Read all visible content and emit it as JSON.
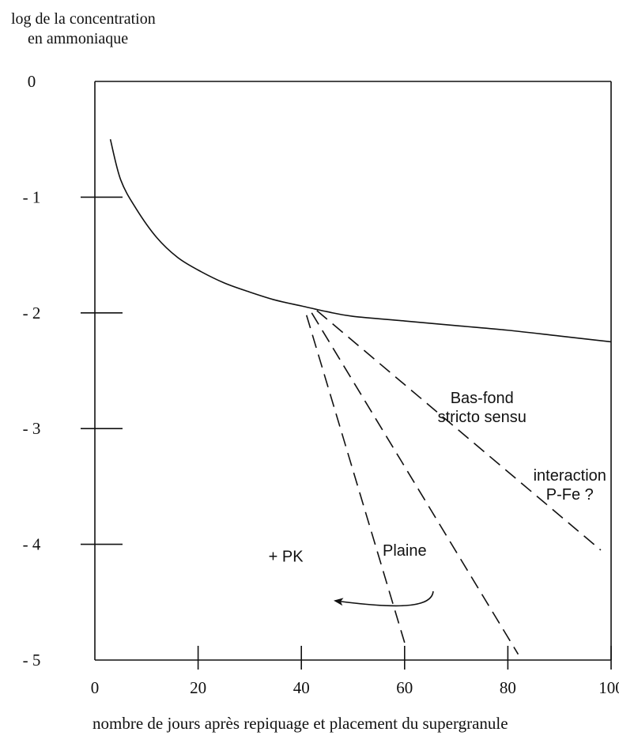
{
  "chart_data": {
    "type": "line",
    "ylabel_line1": "log de la concentration",
    "ylabel_line2": "en ammoniaque",
    "xlabel": "nombre de jours après repiquage et placement du supergranule",
    "xlim": [
      0,
      100
    ],
    "ylim": [
      -5,
      0
    ],
    "xticks": [
      0,
      20,
      40,
      60,
      80,
      100
    ],
    "xtick_labels": [
      "0",
      "20",
      "40",
      "60",
      "80",
      "100"
    ],
    "yticks": [
      0,
      -1,
      -2,
      -3,
      -4,
      -5
    ],
    "ytick_labels": [
      "0",
      "- 1",
      "- 2",
      "- 3",
      "- 4",
      "- 5"
    ],
    "grid": false,
    "series": [
      {
        "style": "solid",
        "x": [
          3,
          5,
          8,
          12,
          16,
          20,
          25,
          30,
          35,
          40,
          45,
          50,
          60,
          70,
          80,
          90,
          100
        ],
        "y": [
          -0.5,
          -0.85,
          -1.1,
          -1.35,
          -1.52,
          -1.63,
          -1.74,
          -1.82,
          -1.89,
          -1.94,
          -1.99,
          -2.03,
          -2.07,
          -2.11,
          -2.15,
          -2.2,
          -2.25
        ]
      },
      {
        "style": "dashed",
        "x": [
          41,
          60
        ],
        "y": [
          -2.02,
          -4.85
        ]
      },
      {
        "style": "dashed",
        "x": [
          42,
          82
        ],
        "y": [
          -2.0,
          -4.95
        ]
      },
      {
        "style": "dashed",
        "x": [
          43,
          98
        ],
        "y": [
          -1.98,
          -4.05
        ]
      }
    ],
    "annotations": [
      {
        "lines": [
          "Bas-fond",
          "stricto sensu"
        ],
        "x": 75,
        "y": -2.78
      },
      {
        "lines": [
          "interaction",
          "P-Fe ?"
        ],
        "x": 92,
        "y": -3.45
      },
      {
        "lines": [
          "Plaine"
        ],
        "x": 60,
        "y": -4.1
      },
      {
        "lines": [
          "+ PK"
        ],
        "x": 37,
        "y": -4.15
      }
    ]
  }
}
